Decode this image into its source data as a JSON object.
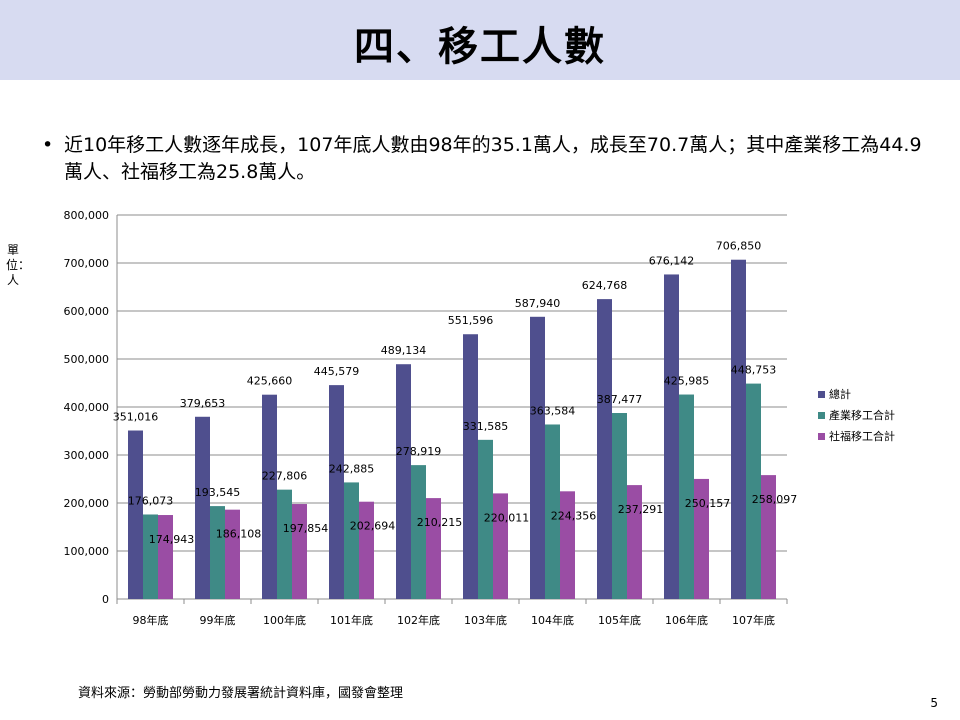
{
  "slide": {
    "title": "四、移工人數",
    "bullet_symbol": "•",
    "bullet_text": "近10年移工人數逐年成長，107年底人數由98年的35.1萬人，成長至70.7萬人；其中產業移工為44.9萬人、社福移工為25.8萬人。",
    "unit_label": "單位：人",
    "source": "資料來源：勞動部勞動力發展署統計資料庫，國發會整理",
    "page_number": "5"
  },
  "colors": {
    "title_band": "#d7dbf1",
    "total": "#4f4f8e",
    "industrial": "#3f8a86",
    "social": "#9a4da4"
  },
  "chart_data": {
    "type": "bar",
    "categories": [
      "98年底",
      "99年底",
      "100年底",
      "101年底",
      "102年底",
      "103年底",
      "104年底",
      "105年底",
      "106年底",
      "107年底"
    ],
    "series": [
      {
        "name": "總計",
        "values": [
          351016,
          379653,
          425660,
          445579,
          489134,
          551596,
          587940,
          624768,
          676142,
          706850
        ]
      },
      {
        "name": "產業移工合計",
        "values": [
          176073,
          193545,
          227806,
          242885,
          278919,
          331585,
          363584,
          387477,
          425985,
          448753
        ]
      },
      {
        "name": "社福移工合計",
        "values": [
          174943,
          186108,
          197854,
          202694,
          210215,
          220011,
          224356,
          237291,
          250157,
          258097
        ]
      }
    ],
    "ylim": [
      0,
      800000
    ],
    "yticks": [
      "0",
      "100,000",
      "200,000",
      "300,000",
      "400,000",
      "500,000",
      "600,000",
      "700,000",
      "800,000"
    ],
    "value_labels": [
      [
        "351,016",
        "379,653",
        "425,660",
        "445,579",
        "489,134",
        "551,596",
        "587,940",
        "624,768",
        "676,142",
        "706,850"
      ],
      [
        "176,073",
        "193,545",
        "227,806",
        "242,885",
        "278,919",
        "331,585",
        "363,584",
        "387,477",
        "425,985",
        "448,753"
      ],
      [
        "174,943",
        "186,108",
        "197,854",
        "202,694",
        "210,215",
        "220,011",
        "224,356",
        "237,291",
        "250,157",
        "258,097"
      ]
    ],
    "grid": true,
    "legend_position": "right"
  }
}
